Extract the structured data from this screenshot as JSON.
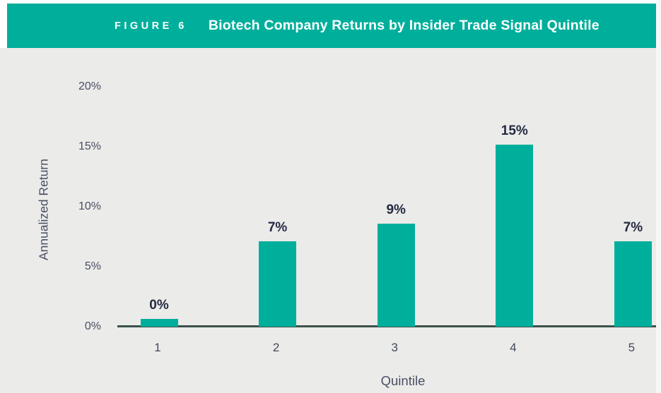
{
  "header": {
    "figure_label": "FIGURE 6",
    "title": "Biotech Company Returns by Insider Trade Signal Quintile"
  },
  "chart_data": {
    "type": "bar",
    "title": "Biotech Company Returns by Insider Trade Signal Quintile",
    "categories": [
      "1",
      "2",
      "3",
      "4",
      "5"
    ],
    "values": [
      0,
      7,
      9,
      15,
      7
    ],
    "bar_labels": [
      "0%",
      "7%",
      "9%",
      "15%",
      "7%"
    ],
    "visual_values": [
      0.65,
      7.1,
      8.6,
      15.2,
      7.1
    ],
    "xlabel": "Quintile",
    "ylabel": "Annualized Return",
    "ylim": [
      0,
      20
    ],
    "yticks": [
      0,
      5,
      10,
      15,
      20
    ],
    "ytick_labels": [
      "0%",
      "5%",
      "10%",
      "15%",
      "20%"
    ],
    "grid": false,
    "legend": "none",
    "bar_color": "#00AF9B"
  },
  "colors": {
    "teal": "#00AF9B",
    "chart_background": "#EBEBE9",
    "axis_line": "#3C514B",
    "data_label_text": "#252A42",
    "tick_text": "#4A4F63",
    "header_text": "#FFFFFF"
  }
}
